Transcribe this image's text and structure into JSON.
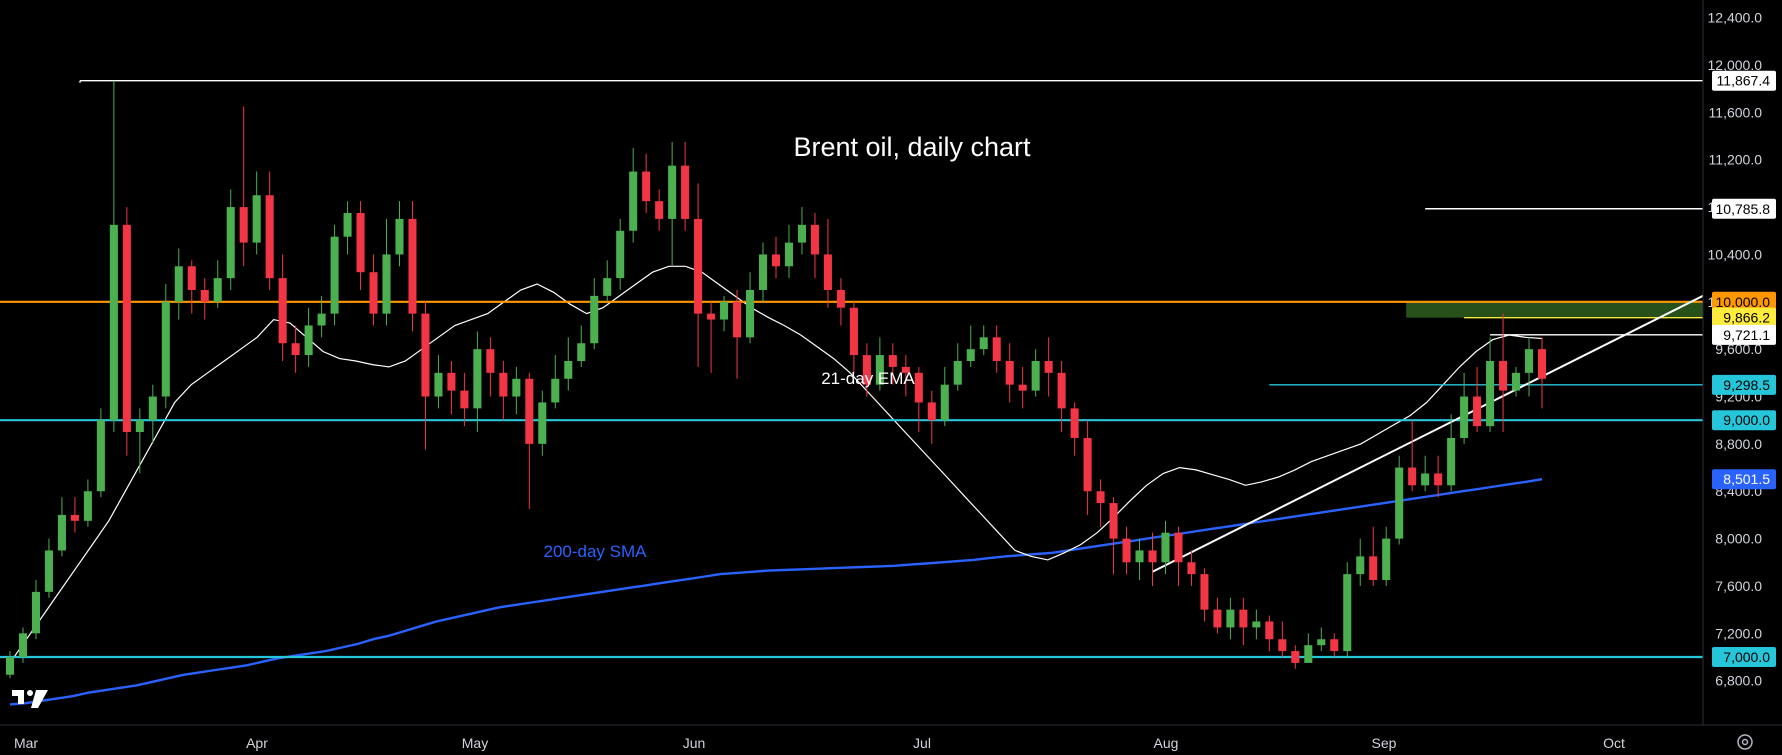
{
  "chart_data": {
    "type": "candlestick",
    "title": "Brent oil, daily chart",
    "ylim": [
      6500,
      12500
    ],
    "y_ticks": [
      "12,400.0",
      "12,000.0",
      "11,600.0",
      "11,200.0",
      "10,800.0",
      "10,400.0",
      "10,000.0",
      "9,600.0",
      "9,200.0",
      "8,800.0",
      "8,400.0",
      "8,000.0",
      "7,600.0",
      "7,200.0",
      "6,800.0"
    ],
    "x_labels": [
      "Mar",
      "Apr",
      "May",
      "Jun",
      "Jul",
      "Aug",
      "Sep",
      "Oct"
    ],
    "annotations": {
      "ema_label": "21-day EMA",
      "sma_label": "200-day SMA"
    },
    "levels": [
      {
        "value": 11867.4,
        "label": "11,867.4",
        "color": "#ffffff"
      },
      {
        "value": 10785.8,
        "label": "10,785.8",
        "color": "#ffffff"
      },
      {
        "value": 10000.0,
        "label": "10,000.0",
        "color": "#ff9800"
      },
      {
        "value": 9866.2,
        "label": "9,866.2",
        "color": "#ffeb3b"
      },
      {
        "value": 9721.1,
        "label": "9,721.1",
        "color": "#ffffff"
      },
      {
        "value": 9298.5,
        "label": "9,298.5",
        "color": "#26c6da"
      },
      {
        "value": 9000.0,
        "label": "9,000.0",
        "color": "#26c6da"
      },
      {
        "value": 8501.5,
        "label": "8,501.5",
        "color": "#2962ff"
      },
      {
        "value": 7000.0,
        "label": "7,000.0",
        "color": "#26c6da"
      }
    ],
    "colors": {
      "up": "#4caf50",
      "down": "#f23645",
      "ema": "#ffffff",
      "sma": "#2962ff",
      "support_zone": "#2e5e1e"
    },
    "ema21": [
      6950,
      7150,
      7350,
      7550,
      7750,
      7950,
      8150,
      8400,
      8650,
      8900,
      9150,
      9300,
      9400,
      9500,
      9600,
      9700,
      9850,
      9820,
      9700,
      9580,
      9520,
      9500,
      9470,
      9450,
      9500,
      9600,
      9700,
      9800,
      9850,
      9900,
      10000,
      10100,
      10150,
      10080,
      9980,
      9900,
      9950,
      10050,
      10150,
      10250,
      10300,
      10300,
      10250,
      10150,
      10050,
      9950,
      9870,
      9800,
      9720,
      9620,
      9520,
      9400,
      9250,
      9100,
      8950,
      8800,
      8650,
      8500,
      8350,
      8200,
      8050,
      7900,
      7850,
      7820,
      7880,
      7950,
      8050,
      8180,
      8320,
      8450,
      8550,
      8600,
      8580,
      8540,
      8500,
      8450,
      8480,
      8520,
      8580,
      8650,
      8700,
      8750,
      8800,
      8880,
      8960,
      9040,
      9150,
      9300,
      9450,
      9580,
      9680,
      9720,
      9700,
      9690
    ],
    "sma200": [
      6600,
      6610,
      6630,
      6650,
      6670,
      6700,
      6720,
      6740,
      6760,
      6790,
      6820,
      6850,
      6870,
      6890,
      6910,
      6930,
      6960,
      6990,
      7010,
      7030,
      7050,
      7080,
      7110,
      7150,
      7180,
      7220,
      7260,
      7300,
      7330,
      7360,
      7390,
      7420,
      7440,
      7460,
      7480,
      7500,
      7520,
      7540,
      7560,
      7580,
      7600,
      7620,
      7640,
      7660,
      7680,
      7700,
      7710,
      7720,
      7730,
      7735,
      7740,
      7745,
      7750,
      7755,
      7760,
      7765,
      7770,
      7780,
      7790,
      7800,
      7810,
      7820,
      7835,
      7850,
      7860,
      7870,
      7880,
      7900,
      7920,
      7940,
      7960,
      7980,
      8000,
      8020,
      8040,
      8060,
      8080,
      8100,
      8120,
      8140,
      8160,
      8180,
      8200,
      8220,
      8240,
      8260,
      8280,
      8300,
      8320,
      8340,
      8360,
      8380,
      8400,
      8420,
      8440,
      8460,
      8480,
      8501.5
    ],
    "candles": [
      [
        6850,
        7000,
        6820,
        7050
      ],
      [
        7000,
        7200,
        6950,
        7250
      ],
      [
        7200,
        7550,
        7150,
        7650
      ],
      [
        7550,
        7900,
        7500,
        8000
      ],
      [
        7900,
        8200,
        7850,
        8350
      ],
      [
        8200,
        8150,
        8050,
        8350
      ],
      [
        8150,
        8400,
        8100,
        8500
      ],
      [
        8400,
        9000,
        8350,
        9100
      ],
      [
        9000,
        10650,
        8900,
        11867.4
      ],
      [
        10650,
        8900,
        8700,
        10800
      ],
      [
        8900,
        9000,
        8550,
        9100
      ],
      [
        9000,
        9200,
        8800,
        9300
      ],
      [
        9200,
        10000,
        9100,
        10150
      ],
      [
        10000,
        10300,
        9850,
        10450
      ],
      [
        10300,
        10100,
        9900,
        10350
      ],
      [
        10100,
        10000,
        9850,
        10200
      ],
      [
        10000,
        10200,
        9950,
        10350
      ],
      [
        10200,
        10800,
        10100,
        10950
      ],
      [
        10800,
        10500,
        10300,
        11650
      ],
      [
        10500,
        10900,
        10400,
        11100
      ],
      [
        10900,
        10200,
        10100,
        11100
      ],
      [
        10200,
        9650,
        9500,
        10400
      ],
      [
        9650,
        9550,
        9400,
        9800
      ],
      [
        9550,
        9800,
        9450,
        9950
      ],
      [
        9800,
        9900,
        9700,
        10050
      ],
      [
        9900,
        10550,
        9800,
        10650
      ],
      [
        10550,
        10750,
        10400,
        10850
      ],
      [
        10750,
        10250,
        10100,
        10850
      ],
      [
        10250,
        9900,
        9800,
        10400
      ],
      [
        9900,
        10400,
        9800,
        10700
      ],
      [
        10400,
        10700,
        10300,
        10850
      ],
      [
        10700,
        9900,
        9750,
        10850
      ],
      [
        9900,
        9200,
        8750,
        10000
      ],
      [
        9200,
        9400,
        9100,
        9550
      ],
      [
        9400,
        9250,
        9050,
        9500
      ],
      [
        9250,
        9100,
        8950,
        9400
      ],
      [
        9100,
        9600,
        8900,
        9750
      ],
      [
        9600,
        9400,
        9200,
        9700
      ],
      [
        9400,
        9200,
        9000,
        9500
      ],
      [
        9200,
        9350,
        9050,
        9450
      ],
      [
        9350,
        8800,
        8250,
        9400
      ],
      [
        8800,
        9150,
        8700,
        9250
      ],
      [
        9150,
        9350,
        9100,
        9550
      ],
      [
        9350,
        9500,
        9250,
        9700
      ],
      [
        9500,
        9650,
        9450,
        9800
      ],
      [
        9650,
        10050,
        9600,
        10200
      ],
      [
        10050,
        10200,
        10000,
        10350
      ],
      [
        10200,
        10600,
        10100,
        10700
      ],
      [
        10600,
        11100,
        10500,
        11300
      ],
      [
        11100,
        10850,
        10750,
        11250
      ],
      [
        10850,
        10700,
        10600,
        10950
      ],
      [
        10700,
        11150,
        10300,
        11350
      ],
      [
        11150,
        10700,
        10600,
        11350
      ],
      [
        10700,
        9900,
        9450,
        11000
      ],
      [
        9900,
        9850,
        9400,
        10000
      ],
      [
        9850,
        10000,
        9750,
        10050
      ],
      [
        10000,
        9700,
        9350,
        10100
      ],
      [
        9700,
        10100,
        9650,
        10250
      ],
      [
        10100,
        10400,
        10000,
        10500
      ],
      [
        10400,
        10300,
        10200,
        10550
      ],
      [
        10300,
        10500,
        10200,
        10650
      ],
      [
        10500,
        10650,
        10400,
        10800
      ],
      [
        10650,
        10400,
        10200,
        10750
      ],
      [
        10400,
        10100,
        9950,
        10700
      ],
      [
        10100,
        9950,
        9800,
        10200
      ],
      [
        9950,
        9550,
        9400,
        10000
      ],
      [
        9550,
        9300,
        9200,
        9650
      ],
      [
        9300,
        9550,
        9250,
        9700
      ],
      [
        9550,
        9450,
        9300,
        9650
      ],
      [
        9450,
        9400,
        9200,
        9550
      ],
      [
        9400,
        9150,
        8900,
        9450
      ],
      [
        9150,
        9000,
        8800,
        9250
      ],
      [
        9000,
        9300,
        8950,
        9450
      ],
      [
        9300,
        9500,
        9250,
        9650
      ],
      [
        9500,
        9600,
        9450,
        9800
      ],
      [
        9600,
        9700,
        9550,
        9800
      ],
      [
        9700,
        9500,
        9400,
        9800
      ],
      [
        9500,
        9300,
        9150,
        9650
      ],
      [
        9300,
        9250,
        9100,
        9450
      ],
      [
        9250,
        9500,
        9200,
        9600
      ],
      [
        9500,
        9400,
        9200,
        9700
      ],
      [
        9400,
        9100,
        8900,
        9500
      ],
      [
        9100,
        8850,
        8700,
        9150
      ],
      [
        8850,
        8400,
        8200,
        9000
      ],
      [
        8400,
        8300,
        8100,
        8500
      ],
      [
        8300,
        8000,
        7700,
        8350
      ],
      [
        8000,
        7800,
        7700,
        8100
      ],
      [
        7800,
        7900,
        7650,
        8000
      ],
      [
        7900,
        7800,
        7600,
        8050
      ],
      [
        7800,
        8050,
        7700,
        8150
      ],
      [
        8050,
        7800,
        7600,
        8100
      ],
      [
        7800,
        7700,
        7600,
        7900
      ],
      [
        7700,
        7400,
        7300,
        7750
      ],
      [
        7400,
        7250,
        7200,
        7500
      ],
      [
        7250,
        7400,
        7150,
        7500
      ],
      [
        7400,
        7250,
        7100,
        7500
      ],
      [
        7250,
        7300,
        7150,
        7400
      ],
      [
        7300,
        7150,
        7050,
        7350
      ],
      [
        7150,
        7050,
        7000,
        7300
      ],
      [
        7050,
        6950,
        6900,
        7100
      ],
      [
        6950,
        7100,
        6950,
        7200
      ],
      [
        7100,
        7150,
        7050,
        7250
      ],
      [
        7150,
        7050,
        7000,
        7200
      ],
      [
        7050,
        7700,
        7000,
        7800
      ],
      [
        7700,
        7850,
        7600,
        8000
      ],
      [
        7850,
        7650,
        7600,
        8100
      ],
      [
        7650,
        8000,
        7600,
        8100
      ],
      [
        8000,
        8600,
        7950,
        8700
      ],
      [
        8600,
        8450,
        8400,
        9000
      ],
      [
        8450,
        8550,
        8400,
        8700
      ],
      [
        8550,
        8450,
        8350,
        8700
      ],
      [
        8450,
        8850,
        8400,
        9050
      ],
      [
        8850,
        9200,
        8800,
        9400
      ],
      [
        9200,
        8950,
        8900,
        9450
      ],
      [
        8950,
        9500,
        8900,
        9700
      ],
      [
        9500,
        9250,
        8900,
        9900
      ],
      [
        9250,
        9400,
        9200,
        9450
      ],
      [
        9400,
        9600,
        9200,
        9700
      ],
      [
        9600,
        9350,
        9100,
        9700
      ]
    ]
  }
}
